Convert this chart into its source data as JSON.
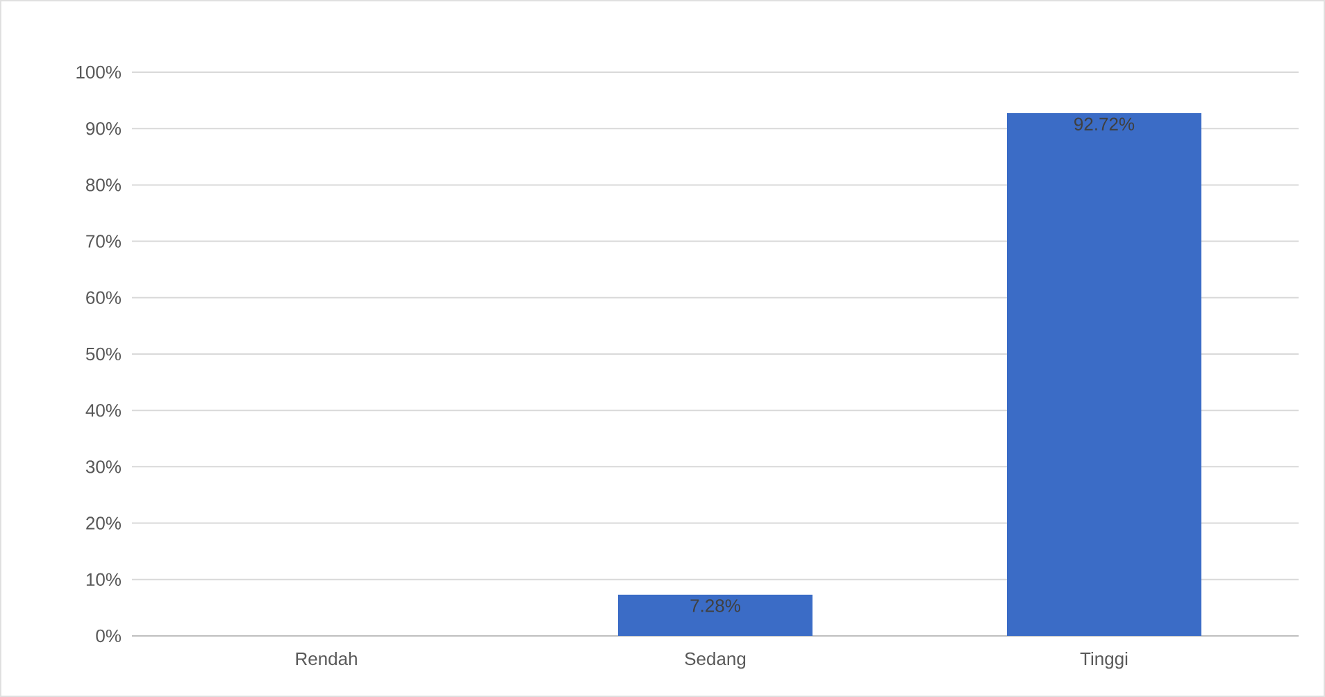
{
  "chart_data": {
    "type": "bar",
    "categories": [
      "Rendah",
      "Sedang",
      "Tinggi"
    ],
    "values": [
      0,
      7.28,
      92.72
    ],
    "value_labels": [
      null,
      "7.28%",
      "92.72%"
    ],
    "color": "#3b6cc6",
    "ylim": [
      0,
      100
    ],
    "yticks": [
      {
        "value": 0,
        "label": "0%"
      },
      {
        "value": 10,
        "label": "10%"
      },
      {
        "value": 20,
        "label": "20%"
      },
      {
        "value": 30,
        "label": "30%"
      },
      {
        "value": 40,
        "label": "40%"
      },
      {
        "value": 50,
        "label": "50%"
      },
      {
        "value": 60,
        "label": "60%"
      },
      {
        "value": 70,
        "label": "70%"
      },
      {
        "value": 80,
        "label": "80%"
      },
      {
        "value": 90,
        "label": "90%"
      },
      {
        "value": 100,
        "label": "100%"
      }
    ],
    "grid": "y"
  }
}
